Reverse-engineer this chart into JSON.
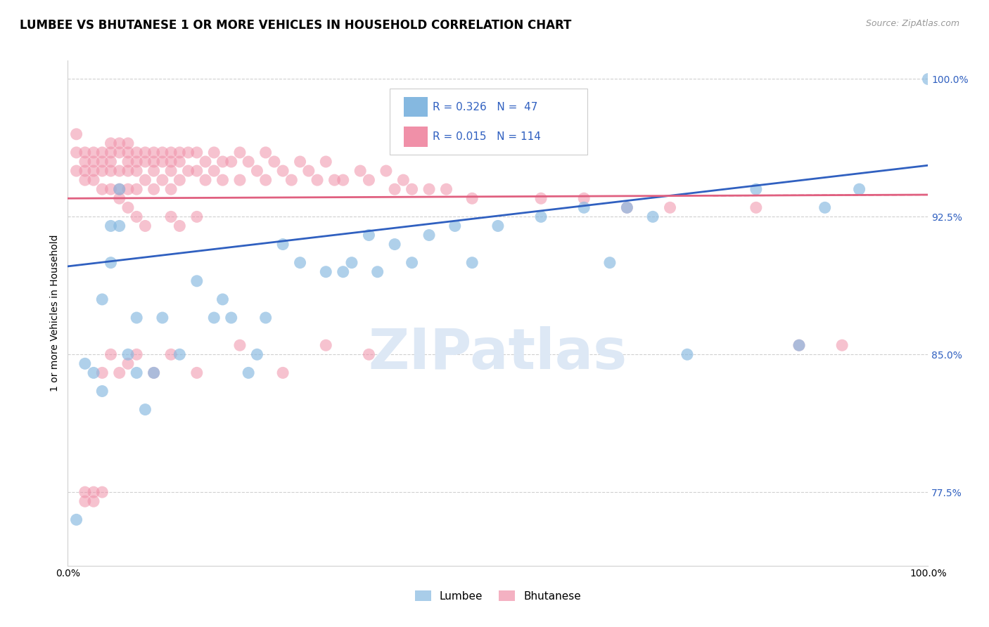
{
  "title": "LUMBEE VS BHUTANESE 1 OR MORE VEHICLES IN HOUSEHOLD CORRELATION CHART",
  "source": "Source: ZipAtlas.com",
  "ylabel": "1 or more Vehicles in Household",
  "ytick_labels": [
    "77.5%",
    "85.0%",
    "92.5%",
    "100.0%"
  ],
  "ytick_values": [
    0.775,
    0.85,
    0.925,
    1.0
  ],
  "lumbee_color": "#85b8e0",
  "bhutanese_color": "#f090a8",
  "trend_lumbee_color": "#3060c0",
  "trend_bhutanese_color": "#e06080",
  "watermark_color": "#dde8f5",
  "lumbee_x": [
    0.01,
    0.02,
    0.03,
    0.04,
    0.04,
    0.05,
    0.05,
    0.06,
    0.06,
    0.07,
    0.08,
    0.08,
    0.09,
    0.1,
    0.11,
    0.13,
    0.15,
    0.17,
    0.18,
    0.19,
    0.21,
    0.22,
    0.23,
    0.25,
    0.27,
    0.3,
    0.32,
    0.33,
    0.35,
    0.36,
    0.38,
    0.4,
    0.42,
    0.45,
    0.47,
    0.5,
    0.55,
    0.6,
    0.63,
    0.65,
    0.68,
    0.72,
    0.8,
    0.85,
    0.88,
    0.92,
    1.0
  ],
  "lumbee_y": [
    0.76,
    0.845,
    0.84,
    0.83,
    0.88,
    0.92,
    0.9,
    0.92,
    0.94,
    0.85,
    0.87,
    0.84,
    0.82,
    0.84,
    0.87,
    0.85,
    0.89,
    0.87,
    0.88,
    0.87,
    0.84,
    0.85,
    0.87,
    0.91,
    0.9,
    0.895,
    0.895,
    0.9,
    0.915,
    0.895,
    0.91,
    0.9,
    0.915,
    0.92,
    0.9,
    0.92,
    0.925,
    0.93,
    0.9,
    0.93,
    0.925,
    0.85,
    0.94,
    0.855,
    0.93,
    0.94,
    1.0
  ],
  "bhutanese_x": [
    0.01,
    0.01,
    0.01,
    0.02,
    0.02,
    0.02,
    0.02,
    0.03,
    0.03,
    0.03,
    0.03,
    0.04,
    0.04,
    0.04,
    0.04,
    0.05,
    0.05,
    0.05,
    0.05,
    0.05,
    0.06,
    0.06,
    0.06,
    0.06,
    0.07,
    0.07,
    0.07,
    0.07,
    0.07,
    0.08,
    0.08,
    0.08,
    0.08,
    0.09,
    0.09,
    0.09,
    0.1,
    0.1,
    0.1,
    0.1,
    0.11,
    0.11,
    0.11,
    0.12,
    0.12,
    0.12,
    0.12,
    0.13,
    0.13,
    0.13,
    0.14,
    0.14,
    0.15,
    0.15,
    0.16,
    0.16,
    0.17,
    0.17,
    0.18,
    0.18,
    0.19,
    0.2,
    0.2,
    0.21,
    0.22,
    0.23,
    0.23,
    0.24,
    0.25,
    0.26,
    0.27,
    0.28,
    0.29,
    0.3,
    0.31,
    0.32,
    0.34,
    0.35,
    0.37,
    0.38,
    0.39,
    0.4,
    0.42,
    0.44,
    0.47,
    0.55,
    0.6,
    0.65,
    0.7,
    0.8,
    0.85,
    0.9,
    0.3,
    0.35,
    0.25,
    0.2,
    0.15,
    0.12,
    0.1,
    0.08,
    0.07,
    0.06,
    0.05,
    0.04,
    0.04,
    0.03,
    0.03,
    0.02,
    0.02,
    0.06,
    0.07,
    0.08,
    0.09,
    0.12,
    0.13,
    0.15
  ],
  "bhutanese_y": [
    0.96,
    0.95,
    0.97,
    0.96,
    0.955,
    0.95,
    0.945,
    0.96,
    0.955,
    0.95,
    0.945,
    0.96,
    0.955,
    0.95,
    0.94,
    0.965,
    0.96,
    0.955,
    0.95,
    0.94,
    0.965,
    0.96,
    0.95,
    0.94,
    0.965,
    0.96,
    0.955,
    0.95,
    0.94,
    0.96,
    0.955,
    0.95,
    0.94,
    0.96,
    0.955,
    0.945,
    0.96,
    0.955,
    0.95,
    0.94,
    0.96,
    0.955,
    0.945,
    0.96,
    0.955,
    0.95,
    0.94,
    0.96,
    0.955,
    0.945,
    0.96,
    0.95,
    0.96,
    0.95,
    0.955,
    0.945,
    0.96,
    0.95,
    0.955,
    0.945,
    0.955,
    0.96,
    0.945,
    0.955,
    0.95,
    0.96,
    0.945,
    0.955,
    0.95,
    0.945,
    0.955,
    0.95,
    0.945,
    0.955,
    0.945,
    0.945,
    0.95,
    0.945,
    0.95,
    0.94,
    0.945,
    0.94,
    0.94,
    0.94,
    0.935,
    0.935,
    0.935,
    0.93,
    0.93,
    0.93,
    0.855,
    0.855,
    0.855,
    0.85,
    0.84,
    0.855,
    0.84,
    0.85,
    0.84,
    0.85,
    0.845,
    0.84,
    0.85,
    0.84,
    0.775,
    0.77,
    0.775,
    0.775,
    0.77,
    0.935,
    0.93,
    0.925,
    0.92,
    0.925,
    0.92,
    0.925
  ],
  "xmin": 0.0,
  "xmax": 1.0,
  "ymin": 0.735,
  "ymax": 1.01,
  "lum_trend_x0": 0.0,
  "lum_trend_y0": 0.898,
  "lum_trend_x1": 1.0,
  "lum_trend_y1": 0.953,
  "bhu_trend_x0": 0.0,
  "bhu_trend_y0": 0.935,
  "bhu_trend_x1": 1.0,
  "bhu_trend_y1": 0.937,
  "background_color": "#ffffff",
  "grid_color": "#d0d0d0",
  "title_fontsize": 12,
  "axis_label_fontsize": 10,
  "tick_fontsize": 10
}
